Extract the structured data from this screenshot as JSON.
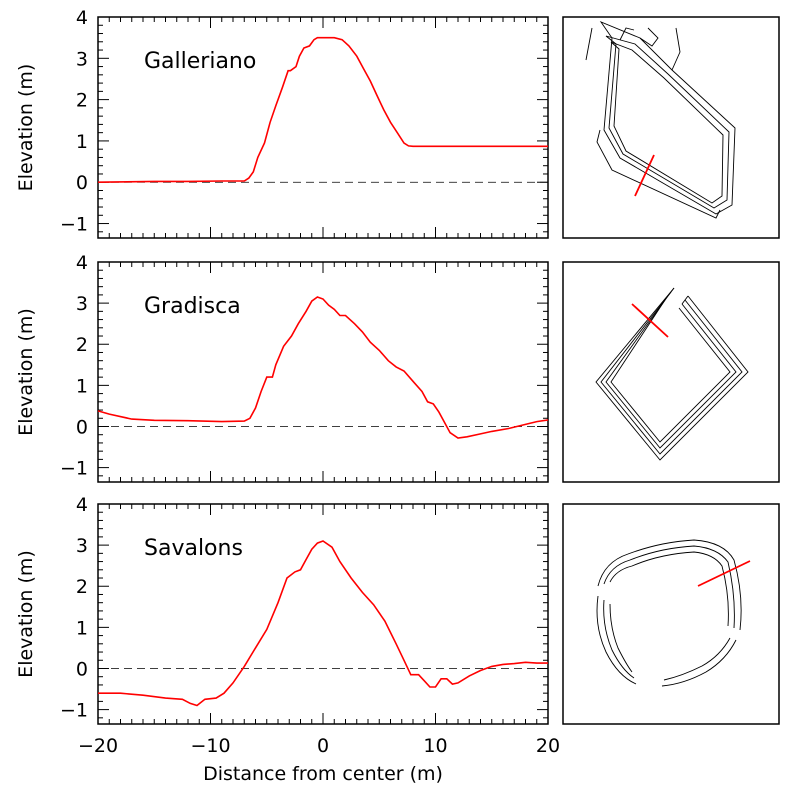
{
  "chart_data": [
    {
      "type": "line",
      "title": "Galleriano",
      "xlabel": "Distance from center (m)",
      "ylabel": "Elevation (m)",
      "xlim": [
        -20,
        20
      ],
      "ylim": [
        -1.35,
        4
      ],
      "xticks": [
        -20,
        -10,
        0,
        10,
        20
      ],
      "yticks": [
        -1,
        0,
        1,
        2,
        3,
        4
      ],
      "reference_line": 0,
      "series": [
        {
          "name": "profile",
          "color": "#ff0000",
          "x": [
            -20,
            -15,
            -12,
            -9,
            -7,
            -6.6,
            -6.2,
            -5.8,
            -5.2,
            -4.7,
            -4.2,
            -3.6,
            -3.1,
            -2.9,
            -2.4,
            -2.1,
            -1.7,
            -1.2,
            -0.8,
            -0.5,
            0,
            1,
            1.7,
            2.3,
            3,
            3.6,
            4.2,
            4.8,
            5.4,
            6,
            6.6,
            7.2,
            7.6,
            8,
            12,
            16,
            20
          ],
          "y": [
            0,
            0.02,
            0.02,
            0.03,
            0.03,
            0.1,
            0.25,
            0.6,
            0.95,
            1.45,
            1.85,
            2.3,
            2.7,
            2.7,
            2.8,
            3.05,
            3.25,
            3.3,
            3.45,
            3.5,
            3.5,
            3.5,
            3.45,
            3.3,
            3.05,
            2.75,
            2.45,
            2.1,
            1.75,
            1.45,
            1.2,
            0.95,
            0.88,
            0.87,
            0.87,
            0.87,
            0.87
          ]
        }
      ],
      "inset": "Galleriano enclosure contour map with red transect line"
    },
    {
      "type": "line",
      "title": "Gradisca",
      "xlabel": "Distance from center (m)",
      "ylabel": "Elevation (m)",
      "xlim": [
        -20,
        20
      ],
      "ylim": [
        -1.35,
        4
      ],
      "xticks": [
        -20,
        -10,
        0,
        10,
        20
      ],
      "yticks": [
        -1,
        0,
        1,
        2,
        3,
        4
      ],
      "reference_line": 0,
      "series": [
        {
          "name": "profile",
          "color": "#ff0000",
          "x": [
            -20,
            -19,
            -17,
            -15,
            -12,
            -9,
            -7,
            -6.5,
            -6,
            -5.5,
            -5,
            -4.5,
            -4.2,
            -3.5,
            -2.8,
            -2.2,
            -1.5,
            -1,
            -0.5,
            0,
            0.5,
            1,
            1.5,
            2,
            2.8,
            3.5,
            4.2,
            5,
            5.8,
            6.5,
            7.2,
            8,
            8.8,
            9.3,
            9.8,
            10.3,
            10.8,
            11.3,
            12,
            12.8,
            14,
            15,
            16.5,
            18,
            19,
            20
          ],
          "y": [
            0.38,
            0.3,
            0.18,
            0.15,
            0.14,
            0.12,
            0.13,
            0.2,
            0.45,
            0.85,
            1.2,
            1.2,
            1.5,
            1.95,
            2.2,
            2.5,
            2.8,
            3.05,
            3.15,
            3.1,
            2.95,
            2.85,
            2.7,
            2.7,
            2.5,
            2.3,
            2.05,
            1.85,
            1.6,
            1.45,
            1.35,
            1.1,
            0.85,
            0.6,
            0.55,
            0.35,
            0.1,
            -0.15,
            -0.28,
            -0.25,
            -0.18,
            -0.12,
            -0.05,
            0.05,
            0.12,
            0.16
          ]
        }
      ],
      "inset": "Gradisca enclosure contour map with red transect line"
    },
    {
      "type": "line",
      "title": "Savalons",
      "xlabel": "Distance from center (m)",
      "ylabel": "Elevation (m)",
      "xlim": [
        -20,
        20
      ],
      "ylim": [
        -1.35,
        4
      ],
      "xticks": [
        -20,
        -10,
        0,
        10,
        20
      ],
      "yticks": [
        -1,
        0,
        1,
        2,
        3,
        4
      ],
      "reference_line": 0,
      "series": [
        {
          "name": "profile",
          "color": "#ff0000",
          "x": [
            -20,
            -18,
            -16,
            -14,
            -12.5,
            -11.8,
            -11.2,
            -10.5,
            -9.5,
            -8.8,
            -8,
            -7,
            -6,
            -5,
            -4,
            -3.2,
            -2.5,
            -2,
            -1.5,
            -1,
            -0.5,
            0,
            0.8,
            1.5,
            2.5,
            3.5,
            4.5,
            5.5,
            6.5,
            7.2,
            7.8,
            8.5,
            9,
            9.5,
            10,
            10.5,
            11,
            11.5,
            12,
            13,
            14,
            15,
            16,
            17,
            18,
            19,
            20
          ],
          "y": [
            -0.6,
            -0.6,
            -0.65,
            -0.72,
            -0.75,
            -0.85,
            -0.9,
            -0.75,
            -0.72,
            -0.6,
            -0.35,
            0.05,
            0.5,
            0.95,
            1.6,
            2.2,
            2.35,
            2.4,
            2.65,
            2.9,
            3.05,
            3.1,
            2.95,
            2.6,
            2.2,
            1.85,
            1.55,
            1.15,
            0.6,
            0.2,
            -0.15,
            -0.15,
            -0.3,
            -0.45,
            -0.45,
            -0.25,
            -0.25,
            -0.38,
            -0.35,
            -0.18,
            -0.05,
            0.05,
            0.1,
            0.12,
            0.15,
            0.13,
            0.13
          ]
        }
      ],
      "inset": "Savalons enclosure contour map with red transect line"
    }
  ]
}
